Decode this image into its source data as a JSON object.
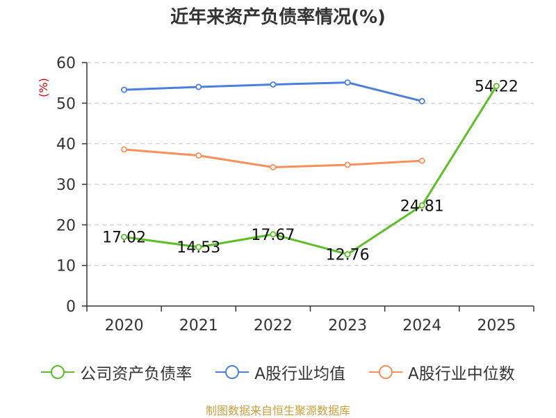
{
  "colors": {
    "series_green": "#5cbf26",
    "series_blue": "#4a7fdc",
    "series_orange": "#f7905a",
    "ylabel": "#cc0000",
    "source": "#c8a03c",
    "grid": "#cccccc",
    "axis": "#333333"
  },
  "source_text": "制图数据来自恒生聚源数据库",
  "chart_data": {
    "type": "line",
    "title": "近年来资产负债率情况(%)",
    "ylabel": "(%)",
    "xlabel": "",
    "categories": [
      "2020",
      "2021",
      "2022",
      "2023",
      "2024",
      "2025"
    ],
    "ylim": [
      0,
      60
    ],
    "yticks": [
      0,
      10,
      20,
      30,
      40,
      50,
      60
    ],
    "grid": "horizontal-dashed",
    "legend_position": "bottom",
    "series": [
      {
        "name": "公司资产负债率",
        "color": "#5cbf26",
        "values": [
          17.02,
          14.53,
          17.67,
          12.76,
          24.81,
          54.22
        ],
        "labels": [
          "17.02",
          "14.53",
          "17.67",
          "12.76",
          "24.81",
          "54.22"
        ]
      },
      {
        "name": "A股行业均值",
        "color": "#4a7fdc",
        "values": [
          53.3,
          54.0,
          54.6,
          55.1,
          50.5,
          null
        ]
      },
      {
        "name": "A股行业中位数",
        "color": "#f7905a",
        "values": [
          38.6,
          37.1,
          34.2,
          34.8,
          35.8,
          null
        ]
      }
    ]
  }
}
